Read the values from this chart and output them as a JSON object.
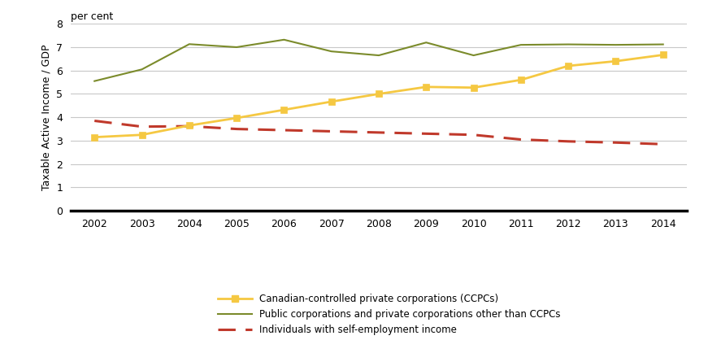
{
  "years": [
    2002,
    2003,
    2004,
    2005,
    2006,
    2007,
    2008,
    2009,
    2010,
    2011,
    2012,
    2013,
    2014
  ],
  "ccpc": [
    3.15,
    3.25,
    3.65,
    3.97,
    4.32,
    4.67,
    5.0,
    5.3,
    5.27,
    5.6,
    6.2,
    6.4,
    6.67
  ],
  "public": [
    5.55,
    6.05,
    7.13,
    7.0,
    7.32,
    6.82,
    6.65,
    7.2,
    6.65,
    7.1,
    7.12,
    7.1,
    7.12
  ],
  "self_emp": [
    3.85,
    3.6,
    3.62,
    3.5,
    3.45,
    3.4,
    3.35,
    3.3,
    3.25,
    3.05,
    2.97,
    2.92,
    2.85
  ],
  "ccpc_color": "#F5C842",
  "public_color": "#7B8B2B",
  "self_emp_color": "#C0392B",
  "ylabel": "Taxable Active Income / GDP",
  "per_cent_label": "per cent",
  "ylim": [
    0,
    8
  ],
  "yticks": [
    0,
    1,
    2,
    3,
    4,
    5,
    6,
    7,
    8
  ],
  "legend_ccpc": "Canadian-controlled private corporations (CCPCs)",
  "legend_public": "Public corporations and private corporations other than CCPCs",
  "legend_self": "Individuals with self-employment income",
  "bg_color": "#ffffff",
  "grid_color": "#c8c8c8"
}
